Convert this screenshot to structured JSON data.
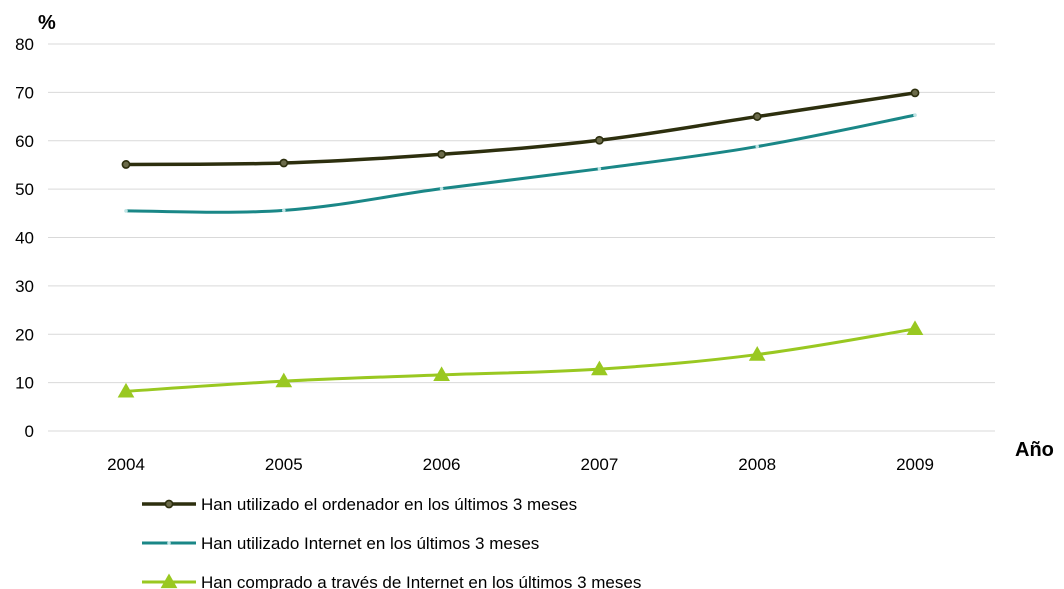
{
  "chart_data": {
    "type": "line",
    "title": "",
    "xlabel": "Año",
    "ylabel": "%",
    "x": [
      "2004",
      "2005",
      "2006",
      "2007",
      "2008",
      "2009"
    ],
    "ylim": [
      0,
      80
    ],
    "yticks": [
      "0",
      "10",
      "20",
      "30",
      "40",
      "50",
      "60",
      "70",
      "80"
    ],
    "grid": true,
    "legend_position": "bottom",
    "series": [
      {
        "name": "Han utilizado el ordenador en los últimos 3 meses",
        "values": [
          55.1,
          55.4,
          57.2,
          60.1,
          65.0,
          69.9
        ],
        "color": "#2d2f0e",
        "marker": "circle"
      },
      {
        "name": "Han utilizado Internet en los últimos 3 meses",
        "values": [
          45.5,
          45.6,
          50.1,
          54.2,
          58.8,
          65.3
        ],
        "color": "#1a8787",
        "marker": "dot"
      },
      {
        "name": "Han comprado a través de Internet en los últimos 3 meses",
        "values": [
          8.2,
          10.3,
          11.6,
          12.8,
          15.8,
          21.1
        ],
        "color": "#99c821",
        "marker": "triangle"
      }
    ]
  }
}
